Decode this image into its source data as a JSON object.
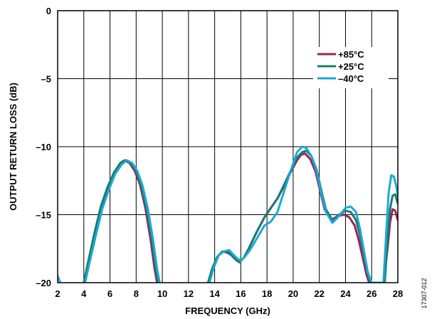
{
  "chart_data": {
    "type": "line",
    "title": "",
    "xlabel": "FREQUENCY (GHz)",
    "ylabel": "OUTPUT RETURN LOSS (dB)",
    "xlim": [
      2,
      28
    ],
    "ylim": [
      -20,
      0
    ],
    "grid": true,
    "legend_position": "top-right",
    "figure_id": "17307-012",
    "x_ticks": [
      2,
      4,
      6,
      8,
      10,
      12,
      14,
      16,
      18,
      20,
      22,
      24,
      26,
      28
    ],
    "x_tick_labels": [
      "2",
      "4",
      "6",
      "8",
      "10",
      "12",
      "14",
      "16",
      "18",
      "20",
      "22",
      "24",
      "26",
      "28"
    ],
    "y_ticks": [
      0,
      -5,
      -10,
      -15,
      -20
    ],
    "y_tick_labels": [
      "0",
      "–5",
      "–10",
      "–15",
      "–20"
    ],
    "series": [
      {
        "name": "+85°C",
        "color": "#9b2355",
        "x": [
          4.0,
          4.3,
          4.8,
          5.3,
          5.8,
          6.3,
          6.8,
          7.1,
          7.5,
          7.9,
          8.3,
          8.7,
          9.1,
          9.4,
          9.6,
          13.5,
          13.8,
          14.2,
          14.6,
          15.0,
          15.3,
          15.6,
          15.9,
          16.2,
          16.6,
          17.2,
          17.8,
          18.3,
          18.8,
          19.3,
          19.8,
          20.3,
          20.6,
          20.9,
          21.3,
          21.7,
          22.0,
          22.4,
          22.9,
          23.4,
          23.9,
          24.3,
          24.7,
          25.0,
          25.3,
          25.6,
          25.8,
          26.9,
          27.2,
          27.4,
          27.6,
          27.8,
          28.0
        ],
        "y": [
          -20.0,
          -18.8,
          -16.6,
          -14.6,
          -13.1,
          -11.9,
          -11.2,
          -11.0,
          -11.2,
          -11.8,
          -12.8,
          -14.5,
          -16.8,
          -18.9,
          -20.0,
          -20.0,
          -19.0,
          -18.1,
          -17.7,
          -17.8,
          -18.0,
          -18.3,
          -18.5,
          -18.2,
          -17.5,
          -16.3,
          -15.2,
          -14.5,
          -13.8,
          -12.9,
          -11.9,
          -11.0,
          -10.6,
          -10.5,
          -10.9,
          -11.8,
          -13.0,
          -14.6,
          -15.4,
          -15.1,
          -15.0,
          -15.2,
          -15.8,
          -16.8,
          -18.1,
          -19.4,
          -20.0,
          -20.0,
          -17.6,
          -15.6,
          -14.6,
          -14.7,
          -15.4
        ]
      },
      {
        "name": "+25°C",
        "color": "#1b7b6c",
        "x": [
          4.0,
          4.3,
          4.8,
          5.3,
          5.8,
          6.3,
          6.8,
          7.2,
          7.6,
          8.0,
          8.4,
          8.8,
          9.2,
          9.5,
          9.7,
          13.5,
          13.8,
          14.2,
          14.6,
          15.0,
          15.3,
          15.6,
          15.9,
          16.2,
          16.6,
          17.2,
          17.8,
          18.3,
          18.8,
          19.3,
          19.8,
          20.3,
          20.7,
          21.0,
          21.4,
          21.8,
          22.1,
          22.5,
          23.0,
          23.5,
          24.0,
          24.4,
          24.8,
          25.1,
          25.4,
          25.7,
          25.9,
          27.0,
          27.2,
          27.4,
          27.6,
          27.8,
          28.0
        ],
        "y": [
          -20.0,
          -18.6,
          -16.4,
          -14.4,
          -13.0,
          -11.9,
          -11.2,
          -11.0,
          -11.2,
          -11.8,
          -12.9,
          -14.6,
          -16.9,
          -19.0,
          -20.0,
          -20.0,
          -19.0,
          -18.1,
          -17.7,
          -17.7,
          -18.0,
          -18.3,
          -18.5,
          -18.2,
          -17.5,
          -16.3,
          -15.2,
          -14.5,
          -13.8,
          -12.8,
          -11.8,
          -10.8,
          -10.4,
          -10.3,
          -10.7,
          -11.7,
          -13.0,
          -14.6,
          -15.4,
          -15.0,
          -14.7,
          -14.8,
          -15.4,
          -16.5,
          -18.0,
          -19.4,
          -20.0,
          -20.0,
          -17.0,
          -14.6,
          -13.6,
          -13.5,
          -14.2
        ]
      },
      {
        "name": "–40°C",
        "color": "#1ba9d8",
        "x": [
          2.0,
          2.2,
          4.1,
          4.4,
          4.9,
          5.4,
          5.9,
          6.4,
          6.9,
          7.3,
          7.7,
          8.1,
          8.5,
          8.9,
          9.3,
          9.6,
          9.8,
          13.6,
          13.9,
          14.3,
          14.7,
          15.1,
          15.4,
          15.7,
          16.0,
          16.3,
          16.7,
          17.2,
          17.8,
          18.3,
          18.8,
          19.3,
          19.8,
          20.3,
          20.7,
          21.0,
          21.4,
          21.8,
          22.1,
          22.5,
          23.0,
          23.5,
          24.0,
          24.4,
          24.8,
          25.1,
          25.4,
          25.7,
          26.0,
          26.9,
          27.1,
          27.3,
          27.5,
          27.7,
          27.9,
          28.0
        ],
        "y": [
          -19.5,
          -20.0,
          -20.0,
          -18.7,
          -16.6,
          -14.6,
          -13.2,
          -12.0,
          -11.3,
          -11.0,
          -11.2,
          -11.8,
          -12.9,
          -14.6,
          -16.9,
          -19.0,
          -20.0,
          -20.0,
          -19.0,
          -18.0,
          -17.7,
          -17.6,
          -17.9,
          -18.2,
          -18.4,
          -18.1,
          -17.6,
          -16.8,
          -15.8,
          -15.5,
          -14.8,
          -13.3,
          -11.8,
          -10.4,
          -10.0,
          -10.1,
          -10.7,
          -11.8,
          -13.2,
          -14.8,
          -15.6,
          -15.1,
          -14.5,
          -14.4,
          -14.8,
          -16.0,
          -17.6,
          -19.2,
          -20.0,
          -20.0,
          -16.5,
          -13.4,
          -12.1,
          -12.2,
          -13.0,
          -13.6
        ]
      }
    ]
  }
}
